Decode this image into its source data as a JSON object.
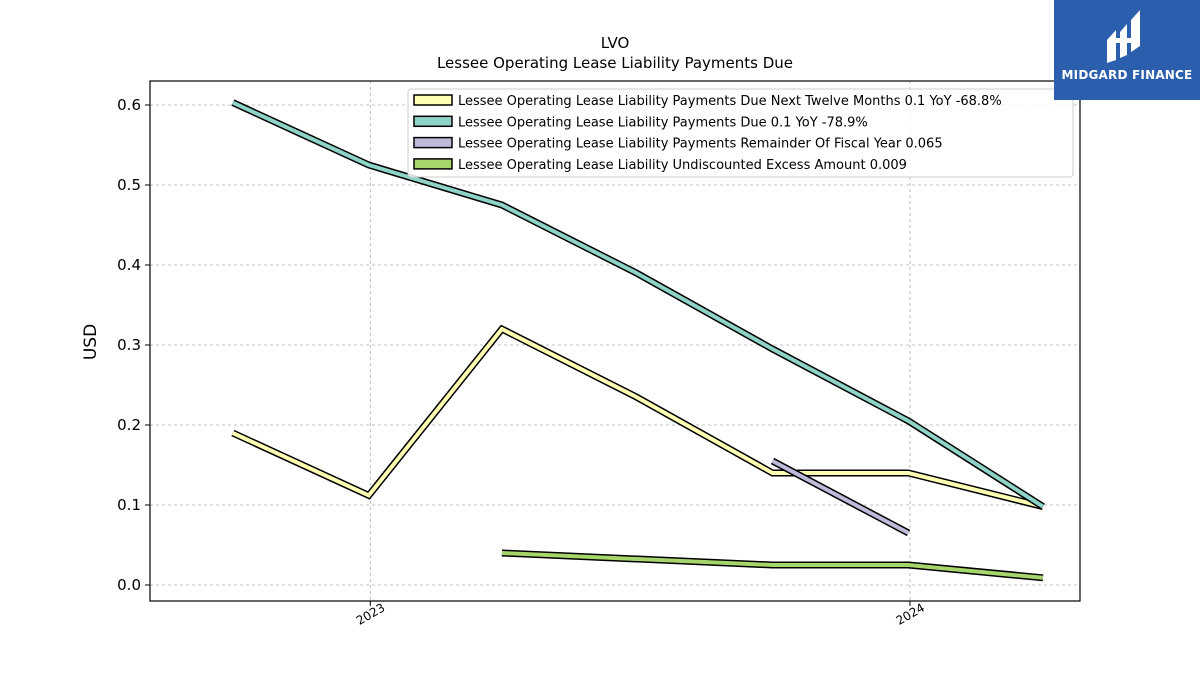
{
  "chart_data": {
    "type": "line",
    "title": "LVO",
    "subtitle": "Lessee Operating Lease Liability Payments Due",
    "xlabel": "",
    "ylabel": "USD",
    "ylim": [
      -0.02,
      0.63
    ],
    "yticks": [
      "0.0",
      "0.1",
      "0.2",
      "0.3",
      "0.4",
      "0.5",
      "0.6"
    ],
    "xticks": [
      {
        "label": "2023",
        "date": "2023-01-01"
      },
      {
        "label": "2024",
        "date": "2024-01-01"
      }
    ],
    "xlim": [
      "2022-08-05",
      "2024-04-25"
    ],
    "grid": true,
    "legend_position": "top-right",
    "series": [
      {
        "name": "Lessee Operating Lease Liability Payments Due Next Twelve Months  0.1 YoY -68.8%",
        "color": "#ffffb3",
        "points": [
          [
            "2022-09-30",
            0.19
          ],
          [
            "2022-12-31",
            0.112
          ],
          [
            "2023-03-31",
            0.32
          ],
          [
            "2023-06-30",
            0.235
          ],
          [
            "2023-09-30",
            0.14
          ],
          [
            "2023-12-31",
            0.14
          ],
          [
            "2024-03-31",
            0.098
          ]
        ]
      },
      {
        "name": "Lessee Operating Lease Liability Payments Due  0.1 YoY -78.9%",
        "color": "#8dd3c7",
        "points": [
          [
            "2022-09-30",
            0.603
          ],
          [
            "2022-12-31",
            0.525
          ],
          [
            "2023-03-31",
            0.475
          ],
          [
            "2023-06-30",
            0.39
          ],
          [
            "2023-09-30",
            0.295
          ],
          [
            "2023-12-31",
            0.205
          ],
          [
            "2024-03-31",
            0.098
          ]
        ]
      },
      {
        "name": "Lessee Operating Lease Liability Payments Remainder Of Fiscal Year  0.065",
        "color": "#bebada",
        "points": [
          [
            "2023-09-30",
            0.155
          ],
          [
            "2023-12-31",
            0.065
          ]
        ]
      },
      {
        "name": "Lessee Operating Lease Liability Undiscounted Excess Amount  0.009",
        "color": "#a6d56b",
        "points": [
          [
            "2023-03-31",
            0.04
          ],
          [
            "2023-09-30",
            0.025
          ],
          [
            "2023-12-31",
            0.025
          ],
          [
            "2024-03-31",
            0.009
          ]
        ]
      }
    ]
  },
  "logo": {
    "text": "MIDGARD FINANCE",
    "color": "#2b5fad"
  }
}
